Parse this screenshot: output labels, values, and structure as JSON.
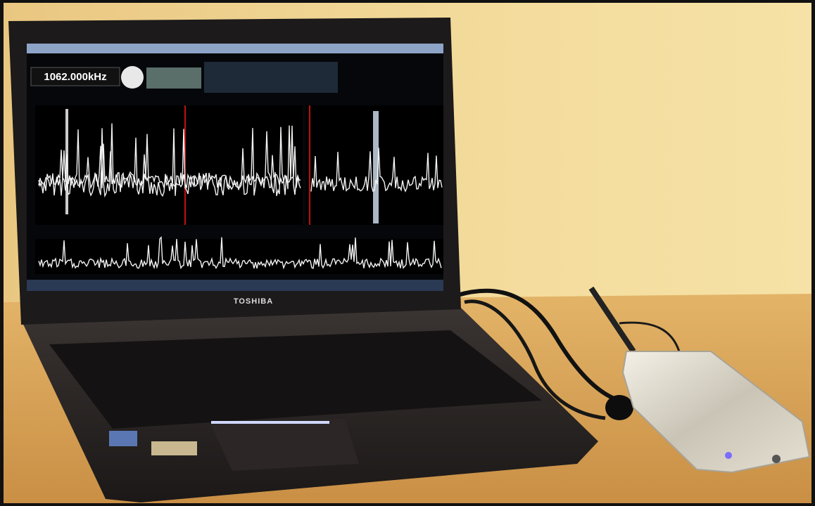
{
  "screen": {
    "frequency": "1062.000kHz"
  },
  "laptop": {
    "brand": "TOSHIBA"
  }
}
